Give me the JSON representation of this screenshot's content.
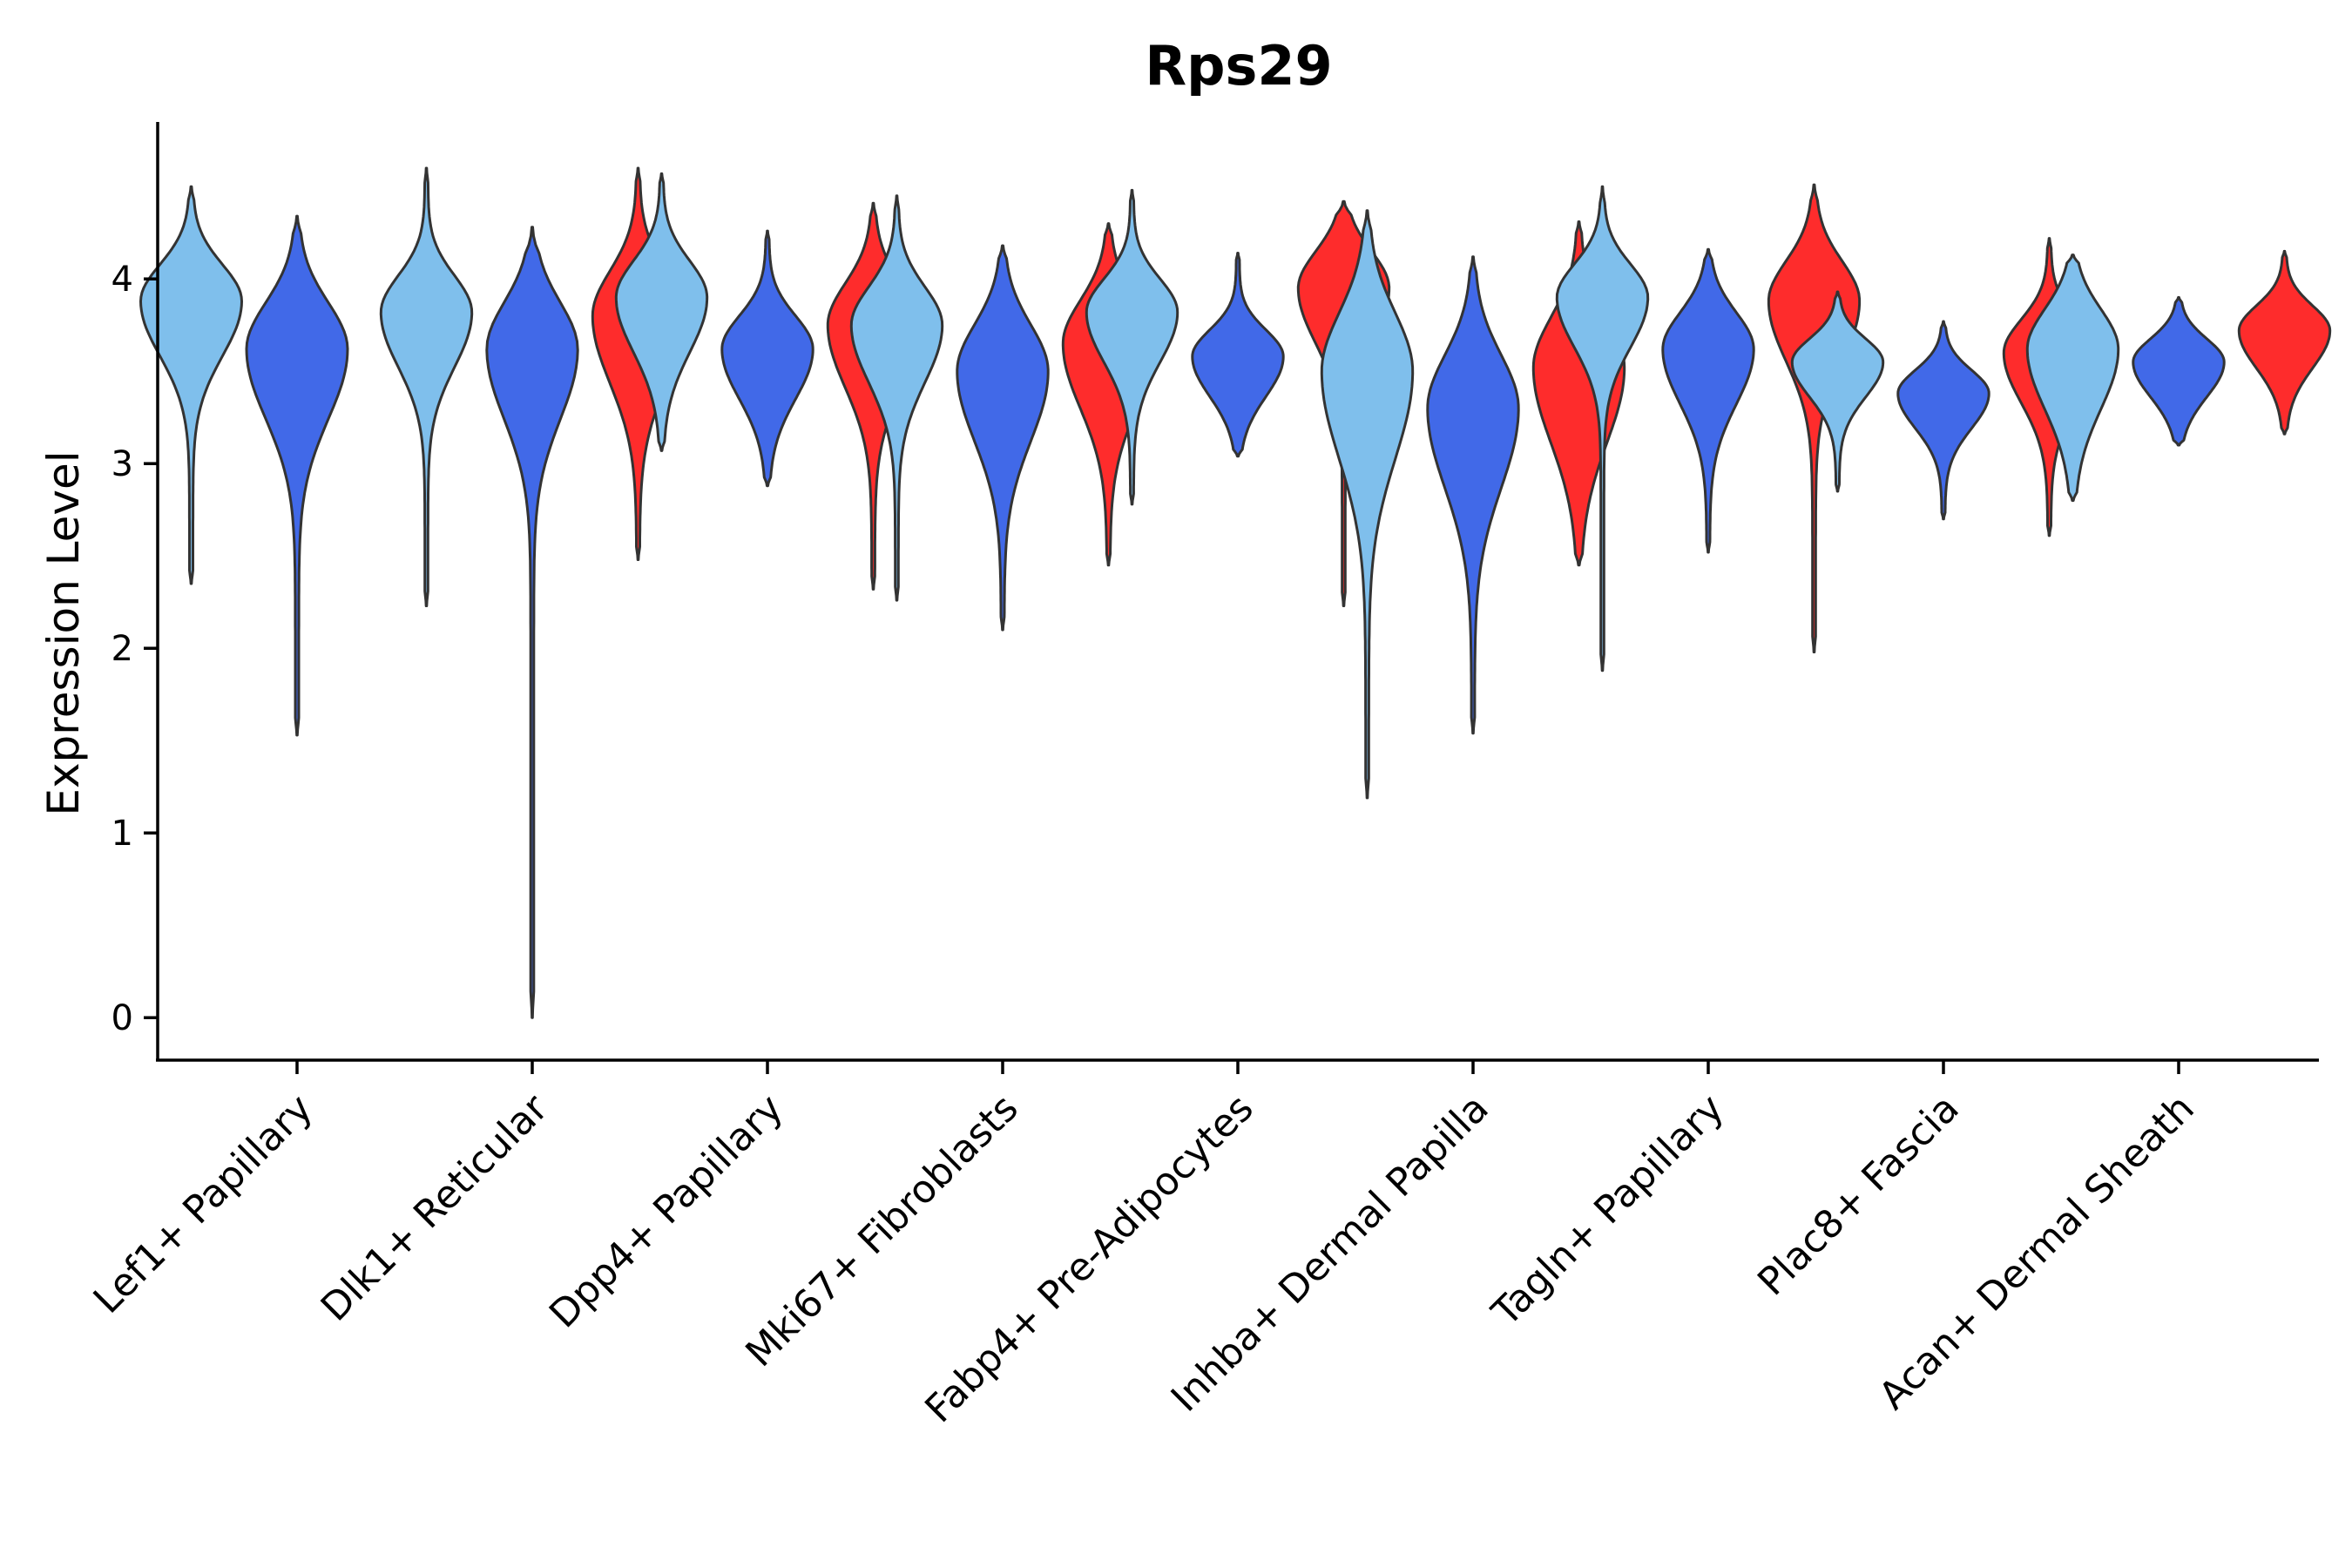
{
  "chart_data": {
    "type": "violin",
    "title": "Rps29",
    "xlabel": "",
    "ylabel": "Expression Level",
    "ylim": [
      -0.23,
      4.85
    ],
    "yticks": [
      0,
      1,
      2,
      3,
      4
    ],
    "grid": false,
    "legend": "none",
    "categories": [
      "Lef1+ Papillary",
      "Dlk1+ Reticular",
      "Dpp4+ Papillary",
      "Mki67+ Fibroblasts",
      "Fabp4+ Pre-Adipocytes",
      "Inhba+ Dermal Papilla",
      "Tagln+ Papillary",
      "Plac8+ Fascia",
      "Acan+ Dermal Sheath"
    ],
    "group_colors": [
      "#7fbfec",
      "#4169e8",
      "#fe2c2c"
    ],
    "violins": [
      {
        "category": 0,
        "group": 0,
        "min": 2.35,
        "max": 4.5,
        "mode": 3.88,
        "spread": 0.22,
        "width": 1.0
      },
      {
        "category": 0,
        "group": 1,
        "min": 1.53,
        "max": 4.34,
        "mode": 3.62,
        "spread": 0.28,
        "width": 1.0
      },
      {
        "category": 1,
        "group": 0,
        "min": 2.23,
        "max": 4.6,
        "mode": 3.82,
        "spread": 0.22,
        "width": 0.9
      },
      {
        "category": 1,
        "group": 1,
        "min": 0.0,
        "max": 4.28,
        "mode": 3.62,
        "spread": 0.28,
        "width": 0.9
      },
      {
        "category": 1,
        "group": 2,
        "min": 2.48,
        "max": 4.6,
        "mode": 3.8,
        "spread": 0.27,
        "width": 0.9
      },
      {
        "category": 2,
        "group": 0,
        "min": 3.07,
        "max": 4.57,
        "mode": 3.9,
        "spread": 0.22,
        "width": 0.9
      },
      {
        "category": 2,
        "group": 1,
        "min": 2.88,
        "max": 4.26,
        "mode": 3.62,
        "spread": 0.2,
        "width": 0.9
      },
      {
        "category": 2,
        "group": 2,
        "min": 2.32,
        "max": 4.41,
        "mode": 3.75,
        "spread": 0.25,
        "width": 0.9
      },
      {
        "category": 3,
        "group": 0,
        "min": 2.26,
        "max": 4.45,
        "mode": 3.75,
        "spread": 0.23,
        "width": 0.9
      },
      {
        "category": 3,
        "group": 1,
        "min": 2.1,
        "max": 4.18,
        "mode": 3.5,
        "spread": 0.28,
        "width": 0.9
      },
      {
        "category": 3,
        "group": 2,
        "min": 2.45,
        "max": 4.3,
        "mode": 3.65,
        "spread": 0.26,
        "width": 0.9
      },
      {
        "category": 4,
        "group": 0,
        "min": 2.78,
        "max": 4.48,
        "mode": 3.82,
        "spread": 0.2,
        "width": 0.9
      },
      {
        "category": 4,
        "group": 1,
        "min": 3.04,
        "max": 4.14,
        "mode": 3.58,
        "spread": 0.16,
        "width": 0.9
      },
      {
        "category": 4,
        "group": 2,
        "min": 2.23,
        "max": 4.42,
        "mode": 3.95,
        "spread": 0.22,
        "width": 0.9
      },
      {
        "category": 5,
        "group": 0,
        "min": 1.19,
        "max": 4.37,
        "mode": 3.5,
        "spread": 0.35,
        "width": 0.9
      },
      {
        "category": 5,
        "group": 1,
        "min": 1.54,
        "max": 4.12,
        "mode": 3.3,
        "spread": 0.32,
        "width": 0.9
      },
      {
        "category": 5,
        "group": 2,
        "min": 2.45,
        "max": 4.31,
        "mode": 3.52,
        "spread": 0.3,
        "width": 0.9
      },
      {
        "category": 6,
        "group": 0,
        "min": 1.88,
        "max": 4.5,
        "mode": 3.9,
        "spread": 0.2,
        "width": 0.9
      },
      {
        "category": 6,
        "group": 1,
        "min": 2.52,
        "max": 4.16,
        "mode": 3.62,
        "spread": 0.22,
        "width": 0.9
      },
      {
        "category": 6,
        "group": 2,
        "min": 1.98,
        "max": 4.51,
        "mode": 3.88,
        "spread": 0.24,
        "width": 0.9
      },
      {
        "category": 7,
        "group": 0,
        "min": 2.85,
        "max": 3.93,
        "mode": 3.55,
        "spread": 0.14,
        "width": 0.9
      },
      {
        "category": 7,
        "group": 1,
        "min": 2.7,
        "max": 3.77,
        "mode": 3.38,
        "spread": 0.14,
        "width": 0.9
      },
      {
        "category": 7,
        "group": 2,
        "min": 2.61,
        "max": 4.22,
        "mode": 3.6,
        "spread": 0.2,
        "width": 0.9
      },
      {
        "category": 8,
        "group": 0,
        "min": 2.8,
        "max": 4.13,
        "mode": 3.62,
        "spread": 0.24,
        "width": 0.9
      },
      {
        "category": 8,
        "group": 1,
        "min": 3.1,
        "max": 3.9,
        "mode": 3.55,
        "spread": 0.14,
        "width": 0.9
      },
      {
        "category": 8,
        "group": 2,
        "min": 3.16,
        "max": 4.15,
        "mode": 3.72,
        "spread": 0.15,
        "width": 0.9
      }
    ]
  }
}
